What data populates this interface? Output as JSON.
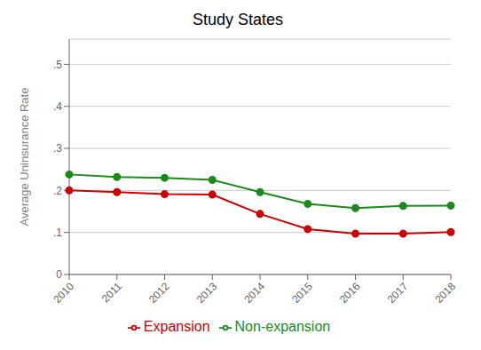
{
  "chart_data": {
    "type": "line",
    "title": "Study States",
    "y_label": "Average Uninsurance Rate",
    "categories": [
      "2010",
      "2011",
      "2012",
      "2013",
      "2014",
      "2015",
      "2016",
      "2017",
      "2018"
    ],
    "series": [
      {
        "name": "Non-expansion",
        "color": "#1a8a1a",
        "marker": "circle",
        "values": [
          0.238,
          0.232,
          0.23,
          0.225,
          0.196,
          0.168,
          0.158,
          0.163,
          0.164
        ]
      },
      {
        "name": "Expansion",
        "color": "#cc0000",
        "marker": "circle",
        "values": [
          0.2,
          0.196,
          0.191,
          0.19,
          0.144,
          0.108,
          0.097,
          0.097,
          0.101
        ]
      }
    ],
    "ylim": [
      0,
      0.56
    ],
    "yticks": [
      0,
      {
        "value": 0.1,
        "label": ".1"
      },
      {
        "value": 0.2,
        "label": ".2"
      },
      {
        "value": 0.3,
        "label": ".3"
      },
      {
        "value": 0.4,
        "label": ".4"
      },
      {
        "value": 0.5,
        "label": ".5"
      }
    ],
    "grid": true,
    "legend": "bottom"
  }
}
